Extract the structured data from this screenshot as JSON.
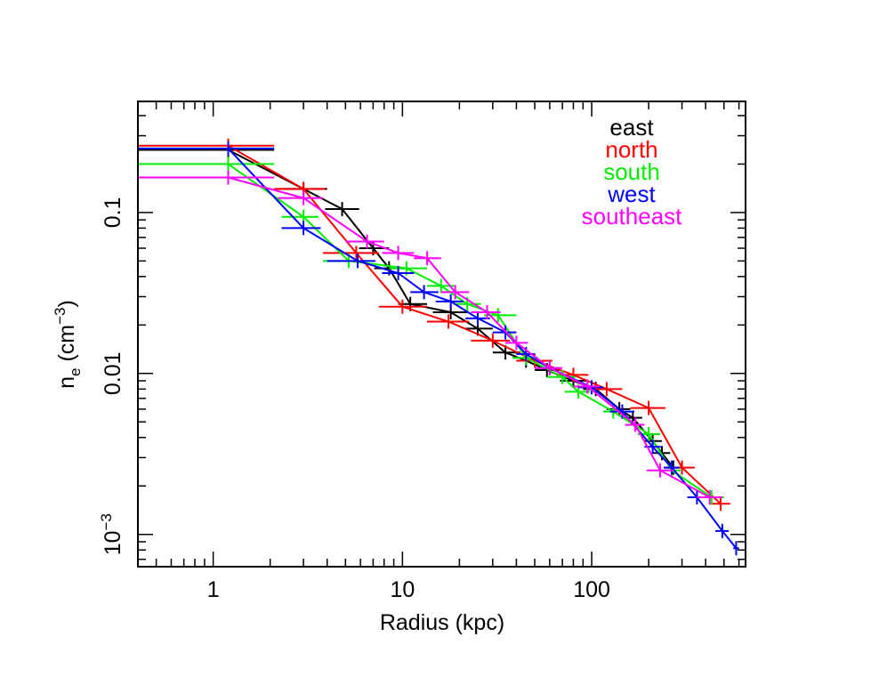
{
  "chart_data": {
    "type": "line",
    "xlabel": "Radius (kpc)",
    "ylabel_main": "n",
    "ylabel_sub": "e",
    "ylabel_unit_pre": " (cm",
    "ylabel_unit_exp": "−3",
    "ylabel_unit_post": ")",
    "xscale": "log",
    "yscale": "log",
    "xlim": [
      0.4,
      650
    ],
    "ylim": [
      0.00063,
      0.49
    ],
    "x_tick_labels": [
      {
        "value": 1,
        "text": "1"
      },
      {
        "value": 10,
        "text": "10"
      },
      {
        "value": 100,
        "text": "100"
      }
    ],
    "y_tick_labels": [
      {
        "value": 0.1,
        "text": "0.1"
      },
      {
        "value": 0.01,
        "text": "0.01"
      },
      {
        "value": 0.001,
        "base": "10",
        "exp": "−3"
      }
    ],
    "legend_placement": "top-right",
    "series": [
      {
        "name": "east",
        "color": "#000000",
        "points": [
          {
            "x": 1.2,
            "y": 0.245,
            "xlo": 0.4,
            "xhi": 2.1
          },
          {
            "x": 3.0,
            "y": 0.14,
            "xlo": 2.1,
            "xhi": 4.0
          },
          {
            "x": 4.8,
            "y": 0.105,
            "xlo": 3.9,
            "xhi": 5.9
          },
          {
            "x": 7.0,
            "y": 0.06,
            "xlo": 5.9,
            "xhi": 8.5
          },
          {
            "x": 8.5,
            "y": 0.045,
            "xlo": 7.1,
            "xhi": 10.3
          },
          {
            "x": 11.0,
            "y": 0.027,
            "xlo": 9.5,
            "xhi": 13.5
          },
          {
            "x": 18.0,
            "y": 0.024,
            "xlo": 14.5,
            "xhi": 22.0
          },
          {
            "x": 25.0,
            "y": 0.019,
            "xlo": 21.5,
            "xhi": 30.0
          },
          {
            "x": 35.0,
            "y": 0.0135,
            "xlo": 30.0,
            "xhi": 42.0
          },
          {
            "x": 45.0,
            "y": 0.012,
            "xlo": 40.0,
            "xhi": 51.0
          },
          {
            "x": 58.0,
            "y": 0.0105,
            "xlo": 50.0,
            "xhi": 67.0
          },
          {
            "x": 80.0,
            "y": 0.009,
            "xlo": 68.0,
            "xhi": 94.0
          },
          {
            "x": 105.0,
            "y": 0.008,
            "xlo": 90.0,
            "xhi": 120.0
          },
          {
            "x": 140.0,
            "y": 0.006,
            "xlo": 120.0,
            "xhi": 160.0
          },
          {
            "x": 165.0,
            "y": 0.0053,
            "xlo": 148.0,
            "xhi": 185.0
          },
          {
            "x": 210.0,
            "y": 0.0038,
            "xlo": 190.0,
            "xhi": 235.0
          },
          {
            "x": 235.0,
            "y": 0.0032,
            "xlo": 212.0,
            "xhi": 260.0
          },
          {
            "x": 270.0,
            "y": 0.0026,
            "xlo": 245.0,
            "xhi": 300.0
          }
        ]
      },
      {
        "name": "north",
        "color": "#ff0000",
        "points": [
          {
            "x": 1.2,
            "y": 0.26,
            "xlo": 0.4,
            "xhi": 2.1
          },
          {
            "x": 3.0,
            "y": 0.14,
            "xlo": 2.1,
            "xhi": 3.9
          },
          {
            "x": 5.7,
            "y": 0.056,
            "xlo": 3.8,
            "xhi": 7.5
          },
          {
            "x": 10.0,
            "y": 0.026,
            "xlo": 7.5,
            "xhi": 13.5
          },
          {
            "x": 17.5,
            "y": 0.021,
            "xlo": 13.5,
            "xhi": 22.5
          },
          {
            "x": 30.0,
            "y": 0.016,
            "xlo": 23.0,
            "xhi": 37.0
          },
          {
            "x": 50.0,
            "y": 0.012,
            "xlo": 40.0,
            "xhi": 62.0
          },
          {
            "x": 80.0,
            "y": 0.0098,
            "xlo": 65.0,
            "xhi": 96.0
          },
          {
            "x": 120.0,
            "y": 0.008,
            "xlo": 100.0,
            "xhi": 145.0
          },
          {
            "x": 200.0,
            "y": 0.0061,
            "xlo": 160.0,
            "xhi": 245.0
          },
          {
            "x": 300.0,
            "y": 0.0026,
            "xlo": 250.0,
            "xhi": 350.0
          },
          {
            "x": 480.0,
            "y": 0.00155,
            "xlo": 420.0,
            "xhi": 540.0
          }
        ]
      },
      {
        "name": "south",
        "color": "#00ee00",
        "points": [
          {
            "x": 1.2,
            "y": 0.2,
            "xlo": 0.4,
            "xhi": 2.1
          },
          {
            "x": 3.0,
            "y": 0.094,
            "xlo": 2.3,
            "xhi": 3.6
          },
          {
            "x": 5.2,
            "y": 0.05,
            "xlo": 3.8,
            "xhi": 6.5
          },
          {
            "x": 10.5,
            "y": 0.045,
            "xlo": 8.5,
            "xhi": 13.5
          },
          {
            "x": 16.0,
            "y": 0.035,
            "xlo": 13.5,
            "xhi": 19.0
          },
          {
            "x": 22.0,
            "y": 0.027,
            "xlo": 19.0,
            "xhi": 26.0
          },
          {
            "x": 32.0,
            "y": 0.023,
            "xlo": 27.0,
            "xhi": 40.0
          },
          {
            "x": 45.0,
            "y": 0.0125,
            "xlo": 38.0,
            "xhi": 52.0
          },
          {
            "x": 70.0,
            "y": 0.0095,
            "xlo": 58.0,
            "xhi": 82.0
          },
          {
            "x": 85.0,
            "y": 0.0077,
            "xlo": 72.0,
            "xhi": 98.0
          },
          {
            "x": 130.0,
            "y": 0.0058,
            "xlo": 115.0,
            "xhi": 150.0
          },
          {
            "x": 200.0,
            "y": 0.0042,
            "xlo": 175.0,
            "xhi": 230.0
          },
          {
            "x": 265.0,
            "y": 0.0025,
            "xlo": 235.0,
            "xhi": 295.0
          },
          {
            "x": 430.0,
            "y": 0.0017,
            "xlo": 380.0,
            "xhi": 500.0
          }
        ]
      },
      {
        "name": "west",
        "color": "#0000ff",
        "points": [
          {
            "x": 1.2,
            "y": 0.25,
            "xlo": 0.4,
            "xhi": 2.1
          },
          {
            "x": 3.0,
            "y": 0.08,
            "xlo": 2.3,
            "xhi": 3.7
          },
          {
            "x": 5.8,
            "y": 0.05,
            "xlo": 4.0,
            "xhi": 7.2
          },
          {
            "x": 9.5,
            "y": 0.042,
            "xlo": 7.8,
            "xhi": 11.5
          },
          {
            "x": 13.0,
            "y": 0.032,
            "xlo": 11.0,
            "xhi": 15.5
          },
          {
            "x": 18.0,
            "y": 0.028,
            "xlo": 15.0,
            "xhi": 21.0
          },
          {
            "x": 25.0,
            "y": 0.022,
            "xlo": 21.5,
            "xhi": 29.0
          },
          {
            "x": 35.0,
            "y": 0.018,
            "xlo": 30.0,
            "xhi": 40.0
          },
          {
            "x": 45.0,
            "y": 0.0132,
            "xlo": 40.0,
            "xhi": 50.0
          },
          {
            "x": 60.0,
            "y": 0.0108,
            "xlo": 52.0,
            "xhi": 68.0
          },
          {
            "x": 100.0,
            "y": 0.0082,
            "xlo": 85.0,
            "xhi": 115.0
          },
          {
            "x": 145.0,
            "y": 0.0058,
            "xlo": 125.0,
            "xhi": 168.0
          },
          {
            "x": 210.0,
            "y": 0.0035,
            "xlo": 190.0,
            "xhi": 232.0
          },
          {
            "x": 265.0,
            "y": 0.0026,
            "xlo": 240.0,
            "xhi": 290.0
          },
          {
            "x": 360.0,
            "y": 0.0017,
            "xlo": 320.0,
            "xhi": 400.0
          },
          {
            "x": 490.0,
            "y": 0.00105,
            "xlo": 450.0,
            "xhi": 530.0
          },
          {
            "x": 580.0,
            "y": 0.00082,
            "xlo": 560.0,
            "xhi": 600.0
          }
        ]
      },
      {
        "name": "southeast",
        "color": "#ff00ff",
        "points": [
          {
            "x": 1.2,
            "y": 0.165,
            "xlo": 0.4,
            "xhi": 2.1
          },
          {
            "x": 3.0,
            "y": 0.123,
            "xlo": 2.2,
            "xhi": 3.8
          },
          {
            "x": 6.5,
            "y": 0.066,
            "xlo": 5.0,
            "xhi": 8.0
          },
          {
            "x": 9.5,
            "y": 0.056,
            "xlo": 7.8,
            "xhi": 11.5
          },
          {
            "x": 13.5,
            "y": 0.052,
            "xlo": 11.5,
            "xhi": 16.0
          },
          {
            "x": 19.0,
            "y": 0.032,
            "xlo": 16.0,
            "xhi": 22.5
          },
          {
            "x": 28.0,
            "y": 0.024,
            "xlo": 23.0,
            "xhi": 33.0
          },
          {
            "x": 40.0,
            "y": 0.0155,
            "xlo": 35.0,
            "xhi": 46.0
          },
          {
            "x": 60.0,
            "y": 0.0108,
            "xlo": 50.0,
            "xhi": 70.0
          },
          {
            "x": 95.0,
            "y": 0.0083,
            "xlo": 80.0,
            "xhi": 110.0
          },
          {
            "x": 170.0,
            "y": 0.0048,
            "xlo": 150.0,
            "xhi": 190.0
          },
          {
            "x": 230.0,
            "y": 0.0025,
            "xlo": 195.0,
            "xhi": 270.0
          },
          {
            "x": 420.0,
            "y": 0.0017,
            "xlo": 360.0,
            "xhi": 490.0
          }
        ]
      }
    ]
  }
}
